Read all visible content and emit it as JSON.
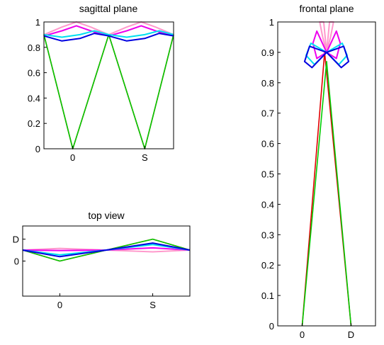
{
  "chart_data": [
    {
      "type": "line",
      "title": "sagittal plane",
      "xticks": [
        "0",
        "S"
      ],
      "yticks": [
        "0",
        "0.2",
        "0.4",
        "0.6",
        "0.8",
        "1"
      ],
      "xlim": [
        -0.4,
        1.4
      ],
      "ylim": [
        0,
        1
      ],
      "grid": false,
      "series": [
        {
          "color": "#e00000",
          "x": [
            -0.4,
            0,
            0.5,
            1,
            1.4
          ],
          "y": [
            0.9,
            0,
            0.9,
            0,
            0.9
          ]
        },
        {
          "color": "#00cc00",
          "x": [
            -0.4,
            0,
            0.5,
            1,
            1.4
          ],
          "y": [
            0.9,
            0,
            0.9,
            0,
            0.9
          ]
        },
        {
          "color": "#ff99cc",
          "x": [
            -0.4,
            -0.15,
            0.05,
            0.25,
            0.5,
            0.75,
            0.95,
            1.15,
            1.4
          ],
          "y": [
            0.9,
            0.96,
            1.0,
            0.96,
            0.9,
            0.96,
            1.0,
            0.96,
            0.9
          ]
        },
        {
          "color": "#ee00ee",
          "x": [
            -0.4,
            -0.15,
            0.05,
            0.25,
            0.5,
            0.75,
            0.95,
            1.15,
            1.4
          ],
          "y": [
            0.89,
            0.93,
            0.97,
            0.93,
            0.89,
            0.93,
            0.97,
            0.93,
            0.89
          ]
        },
        {
          "color": "#00e0f0",
          "x": [
            -0.4,
            -0.15,
            0.1,
            0.3,
            0.5,
            0.75,
            1.0,
            1.2,
            1.4
          ],
          "y": [
            0.9,
            0.88,
            0.9,
            0.93,
            0.9,
            0.88,
            0.9,
            0.93,
            0.9
          ]
        },
        {
          "color": "#0000e0",
          "x": [
            -0.4,
            -0.15,
            0.1,
            0.3,
            0.5,
            0.75,
            1.0,
            1.2,
            1.4
          ],
          "y": [
            0.89,
            0.85,
            0.87,
            0.91,
            0.89,
            0.85,
            0.87,
            0.91,
            0.89
          ]
        }
      ]
    },
    {
      "type": "line",
      "title": "top view",
      "xticks": [
        "0",
        "S"
      ],
      "yticks": [
        "0",
        "D"
      ],
      "xlim": [
        -0.4,
        1.4
      ],
      "ylim": [
        -1.6,
        1.6
      ],
      "grid": false,
      "series": [
        {
          "color": "#e00000",
          "x": [
            -0.4,
            0,
            1,
            1.4
          ],
          "y": [
            0.5,
            0,
            1,
            0.5
          ]
        },
        {
          "color": "#00cc00",
          "x": [
            -0.4,
            0,
            1,
            1.4
          ],
          "y": [
            0.5,
            0,
            1,
            0.5
          ]
        },
        {
          "color": "#ff99cc",
          "x": [
            -0.4,
            0,
            0.5,
            1,
            1.4
          ],
          "y": [
            0.5,
            0.58,
            0.5,
            0.42,
            0.5
          ]
        },
        {
          "color": "#ee00ee",
          "x": [
            -0.4,
            0,
            0.5,
            1,
            1.4
          ],
          "y": [
            0.5,
            0.48,
            0.5,
            0.6,
            0.5
          ]
        },
        {
          "color": "#00e0f0",
          "x": [
            -0.4,
            0,
            0.5,
            1,
            1.4
          ],
          "y": [
            0.5,
            0.28,
            0.5,
            0.75,
            0.5
          ]
        },
        {
          "color": "#0000e0",
          "x": [
            -0.4,
            0,
            0.5,
            1,
            1.4
          ],
          "y": [
            0.5,
            0.2,
            0.5,
            0.82,
            0.5
          ]
        }
      ]
    },
    {
      "type": "line",
      "title": "frontal plane",
      "xticks": [
        "0",
        "D"
      ],
      "yticks": [
        "0",
        "0.1",
        "0.2",
        "0.3",
        "0.4",
        "0.5",
        "0.6",
        "0.7",
        "0.8",
        "0.9",
        "1"
      ],
      "xlim": [
        -0.5,
        1.5
      ],
      "ylim": [
        0,
        1
      ],
      "grid": false,
      "series": [
        {
          "color": "#e00000",
          "x": [
            0,
            0.46,
            1
          ],
          "y": [
            0,
            0.9,
            0
          ]
        },
        {
          "color": "#00cc00",
          "x": [
            0,
            0.5,
            1
          ],
          "y": [
            0,
            0.87,
            0
          ]
        },
        {
          "color": "#ff99cc",
          "x": [
            0.5,
            0.42,
            0.36,
            0.44,
            0.5,
            0.56,
            0.64,
            0.58,
            0.5
          ],
          "y": [
            0.9,
            0.95,
            1.0,
            1.0,
            0.9,
            1.0,
            1.0,
            0.95,
            0.9
          ]
        },
        {
          "color": "#ee00ee",
          "x": [
            0.5,
            0.3,
            0.22,
            0.3,
            0.5,
            0.7,
            0.78,
            0.7,
            0.5
          ],
          "y": [
            0.9,
            0.88,
            0.93,
            0.97,
            0.9,
            0.97,
            0.93,
            0.88,
            0.9
          ]
        },
        {
          "color": "#00e0f0",
          "x": [
            0.5,
            0.25,
            0.08,
            0.18,
            0.5,
            0.82,
            0.92,
            0.75,
            0.5
          ],
          "y": [
            0.9,
            0.86,
            0.89,
            0.93,
            0.9,
            0.93,
            0.89,
            0.86,
            0.9
          ]
        },
        {
          "color": "#0000e0",
          "x": [
            0.5,
            0.2,
            0.05,
            0.15,
            0.5,
            0.85,
            0.95,
            0.8,
            0.5
          ],
          "y": [
            0.9,
            0.85,
            0.87,
            0.92,
            0.9,
            0.92,
            0.87,
            0.85,
            0.9
          ]
        }
      ]
    }
  ]
}
